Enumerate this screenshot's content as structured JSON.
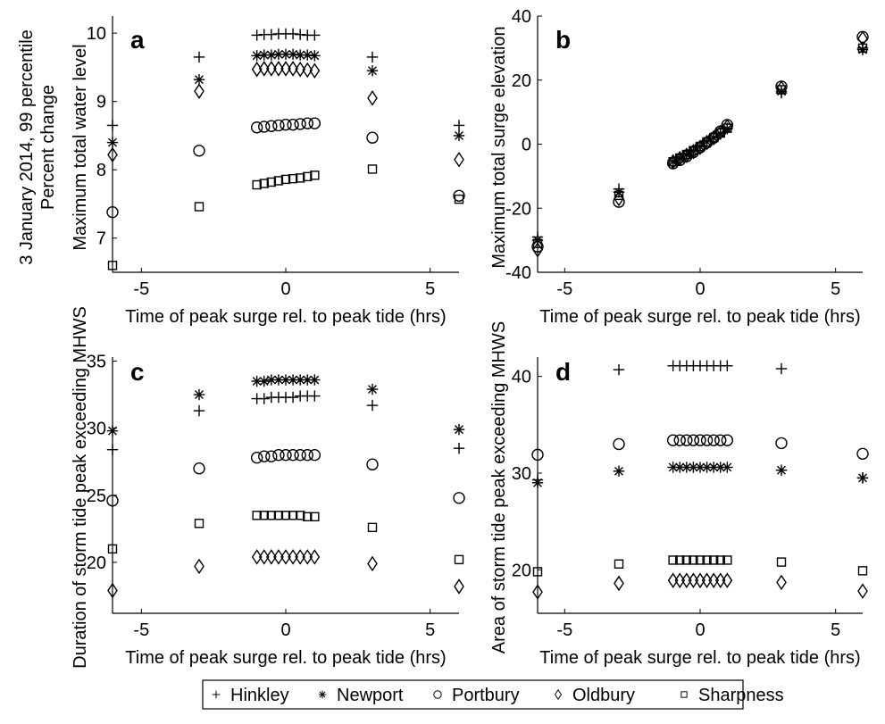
{
  "figure": {
    "title_lines": [
      "3 January 2014, 99 percentile",
      "Percent change"
    ],
    "legend": [
      {
        "name": "Hinkley",
        "marker": "plus"
      },
      {
        "name": "Newport",
        "marker": "asterisk"
      },
      {
        "name": "Portbury",
        "marker": "circle"
      },
      {
        "name": "Oldbury",
        "marker": "diamond"
      },
      {
        "name": "Sharpness",
        "marker": "square"
      }
    ]
  },
  "chart_data": [
    {
      "panel": "a",
      "type": "scatter",
      "xlabel": "Time of peak surge rel. to peak tide (hrs)",
      "ylabel": "Maximum total water level",
      "xlim": [
        -6,
        6
      ],
      "ylim": [
        6.5,
        10.25
      ],
      "xticks": [
        -5,
        0,
        5
      ],
      "yticks": [
        7,
        8,
        9,
        10
      ],
      "x": [
        -6,
        -3,
        -1,
        -0.75,
        -0.5,
        -0.25,
        0,
        0.25,
        0.5,
        0.75,
        1,
        3,
        6
      ],
      "series": [
        {
          "name": "Hinkley",
          "marker": "plus",
          "values": [
            8.65,
            9.65,
            9.97,
            9.98,
            9.98,
            9.99,
            9.99,
            9.99,
            9.98,
            9.97,
            9.97,
            9.65,
            8.65
          ]
        },
        {
          "name": "Newport",
          "marker": "asterisk",
          "values": [
            8.4,
            9.32,
            9.67,
            9.68,
            9.68,
            9.69,
            9.69,
            9.69,
            9.68,
            9.68,
            9.67,
            9.45,
            8.5
          ]
        },
        {
          "name": "Portbury",
          "marker": "circle",
          "values": [
            7.38,
            8.28,
            8.62,
            8.63,
            8.64,
            8.65,
            8.66,
            8.66,
            8.67,
            8.68,
            8.68,
            8.47,
            7.62
          ]
        },
        {
          "name": "Oldbury",
          "marker": "diamond",
          "values": [
            8.22,
            9.15,
            9.47,
            9.48,
            9.48,
            9.48,
            9.48,
            9.48,
            9.47,
            9.46,
            9.45,
            9.05,
            8.15
          ]
        },
        {
          "name": "Sharpness",
          "marker": "square",
          "values": [
            6.6,
            7.46,
            7.78,
            7.8,
            7.82,
            7.84,
            7.86,
            7.87,
            7.88,
            7.9,
            7.92,
            8.01,
            7.57
          ]
        }
      ]
    },
    {
      "panel": "b",
      "type": "scatter",
      "xlabel": "Time of peak surge rel. to peak tide (hrs)",
      "ylabel": "Maximum total surge elevation",
      "xlim": [
        -6,
        6
      ],
      "ylim": [
        -40,
        40
      ],
      "xticks": [
        -5,
        0,
        5
      ],
      "yticks": [
        -40,
        -20,
        0,
        20,
        40
      ],
      "x": [
        -6,
        -3,
        -1,
        -0.75,
        -0.5,
        -0.25,
        0,
        0.25,
        0.5,
        0.75,
        1,
        3,
        6
      ],
      "series": [
        {
          "name": "Hinkley",
          "marker": "plus",
          "values": [
            -29,
            -14,
            -5,
            -4,
            -3,
            -2,
            -0.5,
            1,
            2,
            3.5,
            5,
            16,
            30
          ]
        },
        {
          "name": "Newport",
          "marker": "asterisk",
          "values": [
            -30,
            -15,
            -5.5,
            -4.5,
            -3.3,
            -2.2,
            -0.8,
            0.8,
            2,
            3.3,
            4.8,
            16.5,
            29.5
          ]
        },
        {
          "name": "Portbury",
          "marker": "circle",
          "values": [
            -32,
            -18,
            -6,
            -5,
            -3.8,
            -2.5,
            -1,
            0.5,
            2,
            4,
            6,
            18,
            33.5
          ]
        },
        {
          "name": "Oldbury",
          "marker": "diamond",
          "values": [
            -33,
            -17,
            -5.5,
            -4.5,
            -3.5,
            -2.3,
            -1,
            0.5,
            2,
            3.7,
            5.5,
            17.5,
            33
          ]
        },
        {
          "name": "Sharpness",
          "marker": "square",
          "values": [
            -31,
            -16,
            -5.5,
            -4.3,
            -3.2,
            -2,
            -0.7,
            0.7,
            2,
            3.5,
            5,
            17,
            30
          ]
        }
      ]
    },
    {
      "panel": "c",
      "type": "scatter",
      "xlabel": "Time of peak surge rel. to peak tide (hrs)",
      "ylabel": "Duration of storm tide peak exceeding MHWS",
      "xlim": [
        -6,
        6
      ],
      "ylim": [
        16.2,
        35.3
      ],
      "xticks": [
        -5,
        0,
        5
      ],
      "yticks": [
        20,
        25,
        30,
        35
      ],
      "x": [
        -6,
        -3,
        -1,
        -0.75,
        -0.5,
        -0.25,
        0,
        0.25,
        0.5,
        0.75,
        1,
        3,
        6
      ],
      "series": [
        {
          "name": "Hinkley",
          "marker": "plus",
          "values": [
            28.4,
            31.3,
            32.2,
            32.2,
            32.3,
            32.3,
            32.3,
            32.3,
            32.4,
            32.4,
            32.4,
            31.7,
            28.5
          ]
        },
        {
          "name": "Newport",
          "marker": "asterisk",
          "values": [
            29.8,
            32.5,
            33.5,
            33.5,
            33.6,
            33.6,
            33.6,
            33.6,
            33.6,
            33.6,
            33.6,
            32.9,
            29.9
          ]
        },
        {
          "name": "Portbury",
          "marker": "circle",
          "values": [
            24.6,
            27,
            27.8,
            27.9,
            27.9,
            28,
            28,
            28,
            28,
            28,
            28,
            27.3,
            24.8
          ]
        },
        {
          "name": "Oldbury",
          "marker": "diamond",
          "values": [
            17.9,
            19.7,
            20.4,
            20.4,
            20.4,
            20.4,
            20.4,
            20.4,
            20.4,
            20.4,
            20.4,
            19.9,
            18.2
          ]
        },
        {
          "name": "Sharpness",
          "marker": "square",
          "values": [
            21,
            22.9,
            23.5,
            23.5,
            23.5,
            23.5,
            23.5,
            23.5,
            23.5,
            23.4,
            23.4,
            22.6,
            20.2
          ]
        }
      ]
    },
    {
      "panel": "d",
      "type": "scatter",
      "xlabel": "Time of peak surge rel. to peak tide (hrs)",
      "ylabel": "Area of storm tide peak exceeding MHWS",
      "xlim": [
        -6,
        6
      ],
      "ylim": [
        15.5,
        42
      ],
      "xticks": [
        -5,
        0,
        5
      ],
      "yticks": [
        20,
        30,
        40
      ],
      "x": [
        -6,
        -3,
        -1,
        -0.75,
        -0.5,
        -0.25,
        0,
        0.25,
        0.5,
        0.75,
        1,
        3,
        6
      ],
      "series": [
        {
          "name": "Hinkley",
          "marker": "plus",
          "values": [
            29.3,
            40.7,
            41.1,
            41.1,
            41.1,
            41.1,
            41.1,
            41.1,
            41.1,
            41.1,
            41.1,
            40.8,
            29.5
          ]
        },
        {
          "name": "Newport",
          "marker": "asterisk",
          "values": [
            29,
            30.2,
            30.6,
            30.6,
            30.6,
            30.6,
            30.6,
            30.6,
            30.6,
            30.6,
            30.6,
            30.3,
            29.5
          ]
        },
        {
          "name": "Portbury",
          "marker": "circle",
          "values": [
            31.9,
            33,
            33.4,
            33.4,
            33.4,
            33.4,
            33.4,
            33.4,
            33.4,
            33.4,
            33.4,
            33.1,
            32
          ]
        },
        {
          "name": "Oldbury",
          "marker": "diamond",
          "values": [
            17.7,
            18.6,
            18.9,
            18.9,
            18.9,
            18.9,
            18.9,
            18.9,
            18.9,
            18.9,
            18.9,
            18.7,
            17.8
          ]
        },
        {
          "name": "Sharpness",
          "marker": "square",
          "values": [
            19.8,
            20.6,
            21,
            21,
            21,
            21,
            21,
            21,
            21,
            21,
            21,
            20.8,
            19.9
          ]
        }
      ]
    }
  ]
}
